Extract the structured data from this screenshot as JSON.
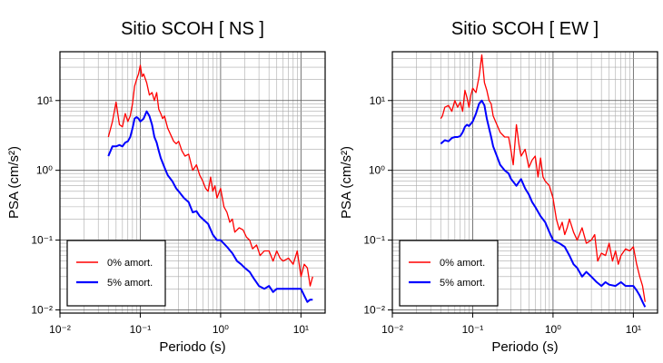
{
  "chart_data": [
    {
      "type": "line",
      "title": "Sitio SCOH [ NS ]",
      "xlabel": "Periodo (s)",
      "ylabel": "PSA (cm/s²)",
      "xscale": "log",
      "yscale": "log",
      "xlim": [
        0.01,
        20
      ],
      "ylim": [
        0.009,
        50
      ],
      "xticks": [
        "10⁻²",
        "10⁻¹",
        "10⁰",
        "10¹"
      ],
      "yticks": [
        "10⁻²",
        "10⁻¹",
        "10⁰",
        "10¹"
      ],
      "grid": true,
      "legend": {
        "placement": "bottom-left",
        "entries": [
          "0% amort.",
          "5% amort."
        ]
      },
      "series": [
        {
          "name": "0% amort.",
          "color": "#ff0000",
          "points": [
            [
              0.04,
              3.0
            ],
            [
              0.045,
              5.0
            ],
            [
              0.05,
              9.5
            ],
            [
              0.055,
              4.5
            ],
            [
              0.06,
              4.2
            ],
            [
              0.065,
              6.5
            ],
            [
              0.07,
              5.0
            ],
            [
              0.075,
              6.0
            ],
            [
              0.08,
              9.0
            ],
            [
              0.085,
              16
            ],
            [
              0.09,
              20
            ],
            [
              0.095,
              24
            ],
            [
              0.1,
              32
            ],
            [
              0.105,
              22
            ],
            [
              0.11,
              24
            ],
            [
              0.12,
              18
            ],
            [
              0.13,
              12
            ],
            [
              0.14,
              13
            ],
            [
              0.15,
              10
            ],
            [
              0.16,
              13
            ],
            [
              0.17,
              7.5
            ],
            [
              0.18,
              6.5
            ],
            [
              0.19,
              5.5
            ],
            [
              0.2,
              6.0
            ],
            [
              0.22,
              4.0
            ],
            [
              0.24,
              3.2
            ],
            [
              0.26,
              2.6
            ],
            [
              0.28,
              2.4
            ],
            [
              0.3,
              2.6
            ],
            [
              0.33,
              1.9
            ],
            [
              0.36,
              1.6
            ],
            [
              0.4,
              1.7
            ],
            [
              0.45,
              1.0
            ],
            [
              0.5,
              1.2
            ],
            [
              0.55,
              0.85
            ],
            [
              0.6,
              0.7
            ],
            [
              0.65,
              0.55
            ],
            [
              0.7,
              0.5
            ],
            [
              0.75,
              0.8
            ],
            [
              0.8,
              0.5
            ],
            [
              0.85,
              0.6
            ],
            [
              0.9,
              0.4
            ],
            [
              1.0,
              0.55
            ],
            [
              1.1,
              0.3
            ],
            [
              1.2,
              0.25
            ],
            [
              1.3,
              0.18
            ],
            [
              1.4,
              0.2
            ],
            [
              1.5,
              0.13
            ],
            [
              1.7,
              0.15
            ],
            [
              1.9,
              0.14
            ],
            [
              2.1,
              0.11
            ],
            [
              2.3,
              0.1
            ],
            [
              2.5,
              0.075
            ],
            [
              2.8,
              0.085
            ],
            [
              3.1,
              0.06
            ],
            [
              3.5,
              0.07
            ],
            [
              4.0,
              0.07
            ],
            [
              4.5,
              0.05
            ],
            [
              5.0,
              0.07
            ],
            [
              5.5,
              0.055
            ],
            [
              6.0,
              0.05
            ],
            [
              7.0,
              0.055
            ],
            [
              8.0,
              0.045
            ],
            [
              9.0,
              0.07
            ],
            [
              10,
              0.03
            ],
            [
              11,
              0.045
            ],
            [
              12,
              0.04
            ],
            [
              13,
              0.022
            ],
            [
              14,
              0.03
            ]
          ]
        },
        {
          "name": "5% amort.",
          "color": "#0000ff",
          "points": [
            [
              0.04,
              1.6
            ],
            [
              0.045,
              2.2
            ],
            [
              0.05,
              2.2
            ],
            [
              0.055,
              2.3
            ],
            [
              0.06,
              2.2
            ],
            [
              0.065,
              2.5
            ],
            [
              0.07,
              2.6
            ],
            [
              0.075,
              3.0
            ],
            [
              0.08,
              4.0
            ],
            [
              0.085,
              5.5
            ],
            [
              0.09,
              5.8
            ],
            [
              0.095,
              5.5
            ],
            [
              0.1,
              5.0
            ],
            [
              0.11,
              5.5
            ],
            [
              0.12,
              7.0
            ],
            [
              0.13,
              6.0
            ],
            [
              0.14,
              4.5
            ],
            [
              0.15,
              3.0
            ],
            [
              0.16,
              2.5
            ],
            [
              0.17,
              1.9
            ],
            [
              0.18,
              1.5
            ],
            [
              0.2,
              1.1
            ],
            [
              0.22,
              0.85
            ],
            [
              0.25,
              0.7
            ],
            [
              0.28,
              0.55
            ],
            [
              0.3,
              0.5
            ],
            [
              0.35,
              0.4
            ],
            [
              0.4,
              0.35
            ],
            [
              0.45,
              0.25
            ],
            [
              0.5,
              0.26
            ],
            [
              0.55,
              0.22
            ],
            [
              0.6,
              0.2
            ],
            [
              0.7,
              0.17
            ],
            [
              0.8,
              0.12
            ],
            [
              0.9,
              0.1
            ],
            [
              1.0,
              0.1
            ],
            [
              1.2,
              0.08
            ],
            [
              1.4,
              0.065
            ],
            [
              1.6,
              0.05
            ],
            [
              1.8,
              0.045
            ],
            [
              2.0,
              0.04
            ],
            [
              2.3,
              0.035
            ],
            [
              2.6,
              0.028
            ],
            [
              3.0,
              0.022
            ],
            [
              3.5,
              0.02
            ],
            [
              4.0,
              0.022
            ],
            [
              4.5,
              0.018
            ],
            [
              5.0,
              0.02
            ],
            [
              6.0,
              0.02
            ],
            [
              7.0,
              0.02
            ],
            [
              8.0,
              0.02
            ],
            [
              9.0,
              0.02
            ],
            [
              10,
              0.02
            ],
            [
              11,
              0.016
            ],
            [
              12,
              0.013
            ],
            [
              13,
              0.014
            ],
            [
              14,
              0.014
            ]
          ]
        }
      ]
    },
    {
      "type": "line",
      "title": "Sitio SCOH [ EW ]",
      "xlabel": "Periodo (s)",
      "ylabel": "PSA (cm/s²)",
      "xscale": "log",
      "yscale": "log",
      "xlim": [
        0.01,
        20
      ],
      "ylim": [
        0.009,
        50
      ],
      "xticks": [
        "10⁻²",
        "10⁻¹",
        "10⁰",
        "10¹"
      ],
      "yticks": [
        "10⁻²",
        "10⁻¹",
        "10⁰",
        "10¹"
      ],
      "grid": true,
      "legend": {
        "placement": "bottom-left",
        "entries": [
          "0% amort.",
          "5% amort."
        ]
      },
      "series": [
        {
          "name": "0% amort.",
          "color": "#ff0000",
          "points": [
            [
              0.04,
              5.5
            ],
            [
              0.042,
              6.0
            ],
            [
              0.045,
              8.0
            ],
            [
              0.05,
              8.5
            ],
            [
              0.055,
              7.0
            ],
            [
              0.06,
              10
            ],
            [
              0.065,
              8.0
            ],
            [
              0.07,
              9.5
            ],
            [
              0.075,
              7.0
            ],
            [
              0.08,
              14
            ],
            [
              0.085,
              11
            ],
            [
              0.09,
              8.0
            ],
            [
              0.095,
              12
            ],
            [
              0.1,
              15
            ],
            [
              0.11,
              13
            ],
            [
              0.12,
              22
            ],
            [
              0.13,
              45
            ],
            [
              0.14,
              18
            ],
            [
              0.15,
              14
            ],
            [
              0.16,
              10
            ],
            [
              0.17,
              9.0
            ],
            [
              0.18,
              6.0
            ],
            [
              0.2,
              4.5
            ],
            [
              0.22,
              3.5
            ],
            [
              0.25,
              3.0
            ],
            [
              0.28,
              3.0
            ],
            [
              0.3,
              1.9
            ],
            [
              0.32,
              1.2
            ],
            [
              0.35,
              4.5
            ],
            [
              0.38,
              2.2
            ],
            [
              0.4,
              1.6
            ],
            [
              0.45,
              2.0
            ],
            [
              0.5,
              1.1
            ],
            [
              0.55,
              1.4
            ],
            [
              0.6,
              1.6
            ],
            [
              0.65,
              0.8
            ],
            [
              0.7,
              1.5
            ],
            [
              0.75,
              0.8
            ],
            [
              0.8,
              0.7
            ],
            [
              0.9,
              0.6
            ],
            [
              1.0,
              0.4
            ],
            [
              1.1,
              0.2
            ],
            [
              1.2,
              0.14
            ],
            [
              1.3,
              0.18
            ],
            [
              1.4,
              0.12
            ],
            [
              1.5,
              0.15
            ],
            [
              1.6,
              0.2
            ],
            [
              1.8,
              0.13
            ],
            [
              2.0,
              0.1
            ],
            [
              2.3,
              0.15
            ],
            [
              2.6,
              0.09
            ],
            [
              3.0,
              0.1
            ],
            [
              3.3,
              0.12
            ],
            [
              3.6,
              0.05
            ],
            [
              4.0,
              0.065
            ],
            [
              4.5,
              0.06
            ],
            [
              5.0,
              0.09
            ],
            [
              5.5,
              0.05
            ],
            [
              6.0,
              0.07
            ],
            [
              6.5,
              0.045
            ],
            [
              7.0,
              0.06
            ],
            [
              8.0,
              0.075
            ],
            [
              9.0,
              0.07
            ],
            [
              10,
              0.08
            ],
            [
              11,
              0.045
            ],
            [
              12,
              0.03
            ],
            [
              13,
              0.022
            ],
            [
              14,
              0.013
            ]
          ]
        },
        {
          "name": "5% amort.",
          "color": "#0000ff",
          "points": [
            [
              0.04,
              2.4
            ],
            [
              0.045,
              2.7
            ],
            [
              0.05,
              2.6
            ],
            [
              0.055,
              2.9
            ],
            [
              0.06,
              3.0
            ],
            [
              0.065,
              3.0
            ],
            [
              0.07,
              3.1
            ],
            [
              0.075,
              3.5
            ],
            [
              0.08,
              4.2
            ],
            [
              0.085,
              4.5
            ],
            [
              0.09,
              4.3
            ],
            [
              0.1,
              5.0
            ],
            [
              0.11,
              6.5
            ],
            [
              0.12,
              9.0
            ],
            [
              0.13,
              10
            ],
            [
              0.14,
              8.5
            ],
            [
              0.15,
              5.5
            ],
            [
              0.16,
              4.0
            ],
            [
              0.17,
              3.0
            ],
            [
              0.18,
              2.2
            ],
            [
              0.2,
              1.6
            ],
            [
              0.22,
              1.2
            ],
            [
              0.25,
              1.0
            ],
            [
              0.28,
              0.9
            ],
            [
              0.3,
              0.75
            ],
            [
              0.35,
              0.6
            ],
            [
              0.4,
              0.75
            ],
            [
              0.45,
              0.55
            ],
            [
              0.5,
              0.45
            ],
            [
              0.55,
              0.35
            ],
            [
              0.6,
              0.3
            ],
            [
              0.7,
              0.22
            ],
            [
              0.8,
              0.18
            ],
            [
              0.9,
              0.13
            ],
            [
              1.0,
              0.1
            ],
            [
              1.2,
              0.09
            ],
            [
              1.4,
              0.08
            ],
            [
              1.6,
              0.06
            ],
            [
              1.8,
              0.045
            ],
            [
              2.0,
              0.04
            ],
            [
              2.3,
              0.03
            ],
            [
              2.6,
              0.035
            ],
            [
              3.0,
              0.03
            ],
            [
              3.5,
              0.025
            ],
            [
              4.0,
              0.022
            ],
            [
              4.5,
              0.025
            ],
            [
              5.0,
              0.023
            ],
            [
              6.0,
              0.022
            ],
            [
              7.0,
              0.025
            ],
            [
              8.0,
              0.022
            ],
            [
              9.0,
              0.022
            ],
            [
              10,
              0.022
            ],
            [
              11,
              0.019
            ],
            [
              12,
              0.016
            ],
            [
              13,
              0.013
            ],
            [
              14,
              0.011
            ]
          ]
        }
      ]
    }
  ]
}
